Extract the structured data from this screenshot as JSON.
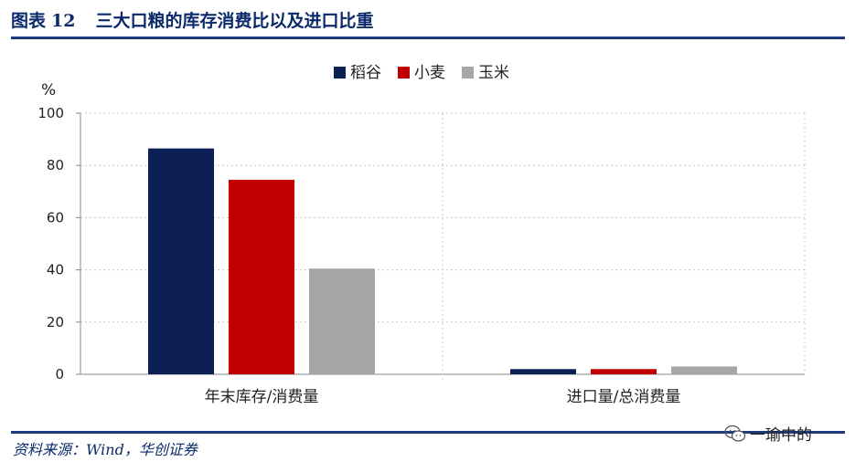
{
  "figure": {
    "label": "图表",
    "number": "12",
    "title": "三大口粮的库存消费比以及进口比重"
  },
  "source": "资料来源：Wind，华创证券",
  "watermark": "一瑜中的",
  "chart_data": {
    "type": "bar",
    "unit": "%",
    "categories": [
      "年末库存/消费量",
      "进口量/总消费量"
    ],
    "series": [
      {
        "name": "稻谷",
        "color": "#0b1f55",
        "values": [
          86.5,
          2.0
        ]
      },
      {
        "name": "小麦",
        "color": "#c00000",
        "values": [
          74.5,
          2.0
        ]
      },
      {
        "name": "玉米",
        "color": "#a6a6a6",
        "values": [
          40.5,
          3.0
        ]
      }
    ],
    "ylim": [
      0,
      100
    ],
    "yticks": [
      0,
      20,
      40,
      60,
      80,
      100
    ],
    "grid": true,
    "legend": "top-center"
  }
}
